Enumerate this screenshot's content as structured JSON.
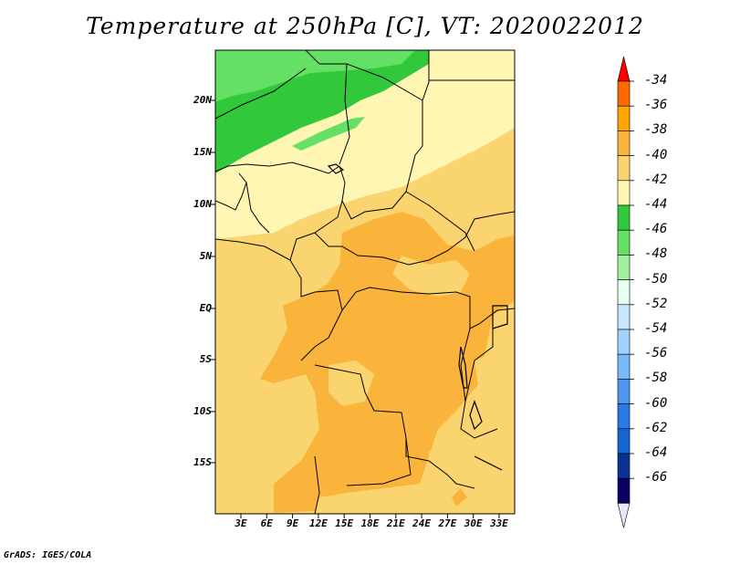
{
  "title": "Temperature at 250hPa [C], VT: 2020022012",
  "credit": "GrADS: IGES/COLA",
  "lat_labels": [
    "20N",
    "15N",
    "10N",
    "5N",
    "EQ",
    "5S",
    "10S",
    "15S"
  ],
  "lon_labels": [
    "3E",
    "6E",
    "9E",
    "12E",
    "15E",
    "18E",
    "21E",
    "24E",
    "27E",
    "30E",
    "33E"
  ],
  "colorbar": {
    "labels": [
      "-34",
      "-36",
      "-38",
      "-40",
      "-42",
      "-44",
      "-46",
      "-48",
      "-50",
      "-52",
      "-54",
      "-56",
      "-58",
      "-60",
      "-62",
      "-64",
      "-66"
    ],
    "colors": [
      "#ff0000",
      "#ff6a00",
      "#ffa500",
      "#fab43c",
      "#fad46e",
      "#fff6b4",
      "#32c83c",
      "#64e164",
      "#a0f0a0",
      "#e6fff0",
      "#c8e6ff",
      "#a0d2ff",
      "#78b9fa",
      "#5096f0",
      "#2878e6",
      "#1464d2",
      "#0a3296",
      "#0a0064",
      "#e6e6fa"
    ]
  },
  "map_colors": {
    "c42": "#fff6b4",
    "c40": "#fad46e",
    "c38": "#fab43c",
    "c44": "#32c83c",
    "c46": "#64e164",
    "c48": "#a0f0a0"
  }
}
